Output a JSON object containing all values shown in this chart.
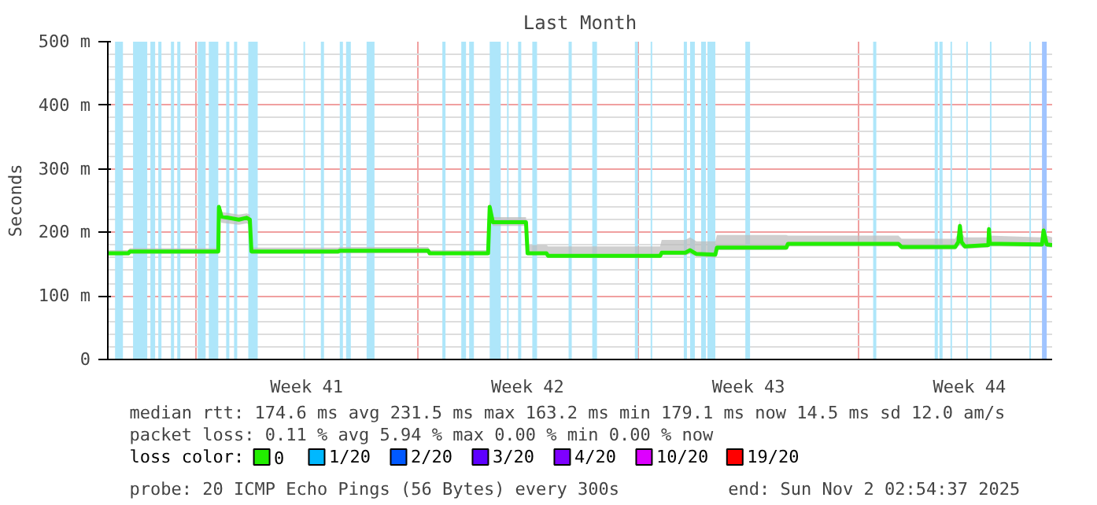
{
  "chart_data": {
    "type": "line",
    "title": "Last Month",
    "ylabel": "Seconds",
    "legend_title": "loss color:",
    "legend": "bottom",
    "grid": true,
    "xlim": [
      "2025-10-03T04:48",
      "2025-11-02T02:55"
    ],
    "ylim": [
      0,
      500
    ],
    "xticks": [
      {
        "value": "2025-10-06",
        "label": null
      },
      {
        "value": "2025-10-09T12:00",
        "label": "Week 41"
      },
      {
        "value": "2025-10-13",
        "label": null
      },
      {
        "value": "2025-10-16T12:00",
        "label": "Week 42"
      },
      {
        "value": "2025-10-20",
        "label": null
      },
      {
        "value": "2025-10-23T12:00",
        "label": "Week 43"
      },
      {
        "value": "2025-10-27",
        "label": null
      },
      {
        "value": "2025-10-30T12:00",
        "label": "Week 44"
      }
    ],
    "yticks": [
      {
        "value": 0,
        "label": "0"
      },
      {
        "value": 100,
        "label": "100 m"
      },
      {
        "value": 200,
        "label": "200 m"
      },
      {
        "value": 300,
        "label": "300 m"
      },
      {
        "value": 400,
        "label": "400 m"
      },
      {
        "value": 500,
        "label": "500 m"
      }
    ],
    "series": [
      {
        "name": "0",
        "color": "#22ee00",
        "x": [
          "2025-10-03T04:48",
          "2025-10-03T20:24",
          "2025-10-03T21:36",
          "2025-10-06T16:48",
          "2025-10-06T17:17",
          "2025-10-06T19:12",
          "2025-10-07T08:24",
          "2025-10-07T14:24",
          "2025-10-07T16:48",
          "2025-10-07T18:00",
          "2025-10-10T12:00",
          "2025-10-10T13:12",
          "2025-10-13T08:24",
          "2025-10-13T09:36",
          "2025-10-15T06:00",
          "2025-10-15T07:12",
          "2025-10-15T09:36",
          "2025-10-16T10:48",
          "2025-10-16T12:00",
          "2025-10-17T02:24",
          "2025-10-17T03:36",
          "2025-10-20T16:48",
          "2025-10-20T18:00",
          "2025-10-21T12:00",
          "2025-10-21T15:36",
          "2025-10-21T20:24",
          "2025-10-22T10:48",
          "2025-10-22T12:00",
          "2025-10-24T16:48",
          "2025-10-24T18:00",
          "2025-10-28T06:00",
          "2025-10-28T08:24",
          "2025-10-30T01:12",
          "2025-10-30T03:36",
          "2025-10-30T04:48",
          "2025-10-30T06:00",
          "2025-10-30T08:24",
          "2025-10-31T02:24",
          "2025-10-31T02:53",
          "2025-10-31T03:36",
          "2025-11-01T19:12",
          "2025-11-01T20:24",
          "2025-11-01T22:48",
          "2025-11-02T02:55"
        ],
        "values": [
          167,
          167,
          170,
          170,
          240,
          225,
          220,
          223,
          220,
          170,
          170,
          171,
          171,
          167,
          167,
          240,
          216,
          216,
          167,
          167,
          163,
          163,
          168,
          168,
          172,
          166,
          165,
          176,
          176,
          182,
          182,
          177,
          177,
          185,
          210,
          185,
          178,
          180,
          205,
          182,
          181,
          203,
          181,
          180
        ],
        "lower": [
          164,
          164,
          166,
          166,
          225,
          215,
          212,
          214,
          212,
          166,
          166,
          167,
          167,
          164,
          164,
          225,
          210,
          210,
          164,
          164,
          160,
          160,
          164,
          164,
          166,
          162,
          160,
          172,
          172,
          178,
          178,
          173,
          173,
          178,
          180,
          178,
          174,
          176,
          180,
          178,
          177,
          180,
          177,
          176
        ],
        "upper": [
          172,
          172,
          175,
          175,
          245,
          232,
          228,
          230,
          228,
          176,
          176,
          177,
          177,
          172,
          172,
          250,
          224,
          224,
          180,
          180,
          178,
          178,
          188,
          188,
          192,
          186,
          186,
          196,
          196,
          195,
          195,
          190,
          190,
          200,
          220,
          200,
          192,
          192,
          215,
          195,
          192,
          215,
          195,
          192
        ]
      },
      {
        "name": "1/20",
        "color": "#00b8ff"
      },
      {
        "name": "2/20",
        "color": "#0059ff"
      },
      {
        "name": "3/20",
        "color": "#5e00ff"
      },
      {
        "name": "4/20",
        "color": "#7e00ff"
      },
      {
        "name": "10/20",
        "color": "#dd00ff"
      },
      {
        "name": "19/20",
        "color": "#ff0000"
      }
    ],
    "bands": [
      {
        "axis": "x",
        "from": "2025-10-03T10:19",
        "to": "2025-10-03T16:19",
        "color": "#aee6fa"
      },
      {
        "axis": "x",
        "from": "2025-10-04T00:00",
        "to": "2025-10-04T10:48",
        "color": "#aee6fa"
      },
      {
        "axis": "x",
        "from": "2025-10-04T13:12",
        "to": "2025-10-04T16:48",
        "color": "#aee6fa"
      },
      {
        "axis": "x",
        "from": "2025-10-04T19:12",
        "to": "2025-10-04T21:36",
        "color": "#aee6fa"
      },
      {
        "axis": "x",
        "from": "2025-10-05T04:48",
        "to": "2025-10-05T07:12",
        "color": "#aee6fa"
      },
      {
        "axis": "x",
        "from": "2025-10-05T09:36",
        "to": "2025-10-05T12:00",
        "color": "#aee6fa"
      },
      {
        "axis": "x",
        "from": "2025-10-06T01:12",
        "to": "2025-10-06T07:12",
        "color": "#aee6fa"
      },
      {
        "axis": "x",
        "from": "2025-10-06T09:36",
        "to": "2025-10-06T16:48",
        "color": "#aee6fa"
      },
      {
        "axis": "x",
        "from": "2025-10-06T22:48",
        "to": "2025-10-07T01:12",
        "color": "#aee6fa"
      },
      {
        "axis": "x",
        "from": "2025-10-07T04:48",
        "to": "2025-10-07T07:12",
        "color": "#aee6fa"
      },
      {
        "axis": "x",
        "from": "2025-10-07T15:36",
        "to": "2025-10-07T22:48",
        "color": "#aee6fa"
      },
      {
        "axis": "x",
        "from": "2025-10-09T09:36",
        "to": "2025-10-09T10:48",
        "color": "#aee6fa"
      },
      {
        "axis": "x",
        "from": "2025-10-09T22:48",
        "to": "2025-10-10T01:12",
        "color": "#aee6fa"
      },
      {
        "axis": "x",
        "from": "2025-10-10T13:12",
        "to": "2025-10-10T15:36",
        "color": "#aee6fa"
      },
      {
        "axis": "x",
        "from": "2025-10-10T18:00",
        "to": "2025-10-10T21:36",
        "color": "#aee6fa"
      },
      {
        "axis": "x",
        "from": "2025-10-11T09:36",
        "to": "2025-10-11T15:36",
        "color": "#aee6fa"
      },
      {
        "axis": "x",
        "from": "2025-10-13T19:12",
        "to": "2025-10-13T21:36",
        "color": "#aee6fa"
      },
      {
        "axis": "x",
        "from": "2025-10-14T09:36",
        "to": "2025-10-14T13:12",
        "color": "#aee6fa"
      },
      {
        "axis": "x",
        "from": "2025-10-14T15:36",
        "to": "2025-10-14T19:12",
        "color": "#aee6fa"
      },
      {
        "axis": "x",
        "from": "2025-10-15T07:12",
        "to": "2025-10-15T15:36",
        "color": "#aee6fa"
      },
      {
        "axis": "x",
        "from": "2025-10-15T20:24",
        "to": "2025-10-15T21:36",
        "color": "#aee6fa"
      },
      {
        "axis": "x",
        "from": "2025-10-16T04:48",
        "to": "2025-10-16T07:12",
        "color": "#aee6fa"
      },
      {
        "axis": "x",
        "from": "2025-10-16T15:36",
        "to": "2025-10-16T19:12",
        "color": "#aee6fa"
      },
      {
        "axis": "x",
        "from": "2025-10-17T19:12",
        "to": "2025-10-17T21:36",
        "color": "#aee6fa"
      },
      {
        "axis": "x",
        "from": "2025-10-18T13:12",
        "to": "2025-10-18T16:48",
        "color": "#aee6fa"
      },
      {
        "axis": "x",
        "from": "2025-10-19T21:36",
        "to": "2025-10-20T00:00",
        "color": "#aee6fa"
      },
      {
        "axis": "x",
        "from": "2025-10-20T09:36",
        "to": "2025-10-20T10:48",
        "color": "#aee6fa"
      },
      {
        "axis": "x",
        "from": "2025-10-21T10:48",
        "to": "2025-10-21T13:12",
        "color": "#aee6fa"
      },
      {
        "axis": "x",
        "from": "2025-10-21T15:36",
        "to": "2025-10-21T19:12",
        "color": "#aee6fa"
      },
      {
        "axis": "x",
        "from": "2025-10-22T00:00",
        "to": "2025-10-22T03:36",
        "color": "#aee6fa"
      },
      {
        "axis": "x",
        "from": "2025-10-22T04:48",
        "to": "2025-10-22T10:48",
        "color": "#aee6fa"
      },
      {
        "axis": "x",
        "from": "2025-10-23T09:36",
        "to": "2025-10-23T13:12",
        "color": "#aee6fa"
      },
      {
        "axis": "x",
        "from": "2025-10-27T10:48",
        "to": "2025-10-27T13:12",
        "color": "#aee6fa"
      },
      {
        "axis": "x",
        "from": "2025-10-29T09:36",
        "to": "2025-10-29T12:00",
        "color": "#aee6fa"
      },
      {
        "axis": "x",
        "from": "2025-10-29T13:12",
        "to": "2025-10-29T15:36",
        "color": "#aee6fa"
      },
      {
        "axis": "x",
        "from": "2025-10-29T21:36",
        "to": "2025-10-29T22:48",
        "color": "#aee6fa"
      },
      {
        "axis": "x",
        "from": "2025-10-30T09:36",
        "to": "2025-10-30T10:48",
        "color": "#aee6fa"
      },
      {
        "axis": "x",
        "from": "2025-10-31T03:36",
        "to": "2025-10-31T04:48",
        "color": "#aee6fa"
      },
      {
        "axis": "x",
        "from": "2025-11-01T09:36",
        "to": "2025-11-01T10:48",
        "color": "#aee6fa"
      },
      {
        "axis": "x",
        "from": "2025-11-01T19:12",
        "to": "2025-11-01T22:48",
        "color": "#a0c4ff"
      }
    ],
    "annotations": [
      "median rtt:  174.6 ms avg  231.5 ms max  163.2 ms min  179.1 ms now  14.5 ms sd  12.0   am/s",
      "packet loss: 0.11 % avg  5.94 % max  0.00 % min  0.00 % now",
      "probe:       20 ICMP Echo Pings (56 Bytes) every 300s",
      "end: Sun Nov  2 02:54:37 2025"
    ]
  }
}
